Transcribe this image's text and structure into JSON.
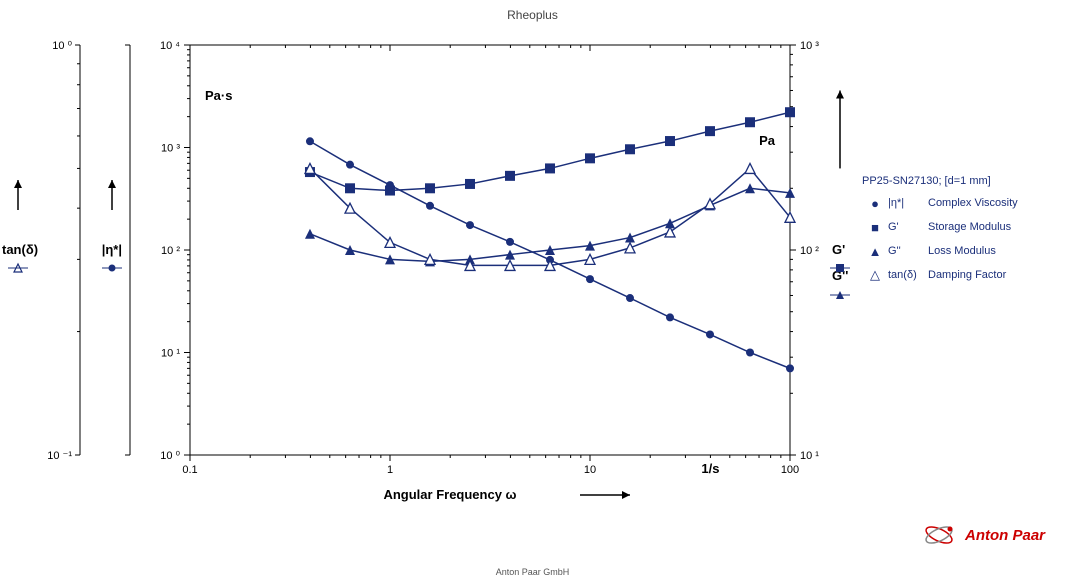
{
  "meta": {
    "title": "Rheoplus",
    "footer": "Anton Paar GmbH",
    "brand": "Anton Paar"
  },
  "plot": {
    "x": {
      "label": "Angular Frequency ω",
      "unit": "1/s",
      "scale": "log",
      "lim": [
        0.1,
        100
      ],
      "ticks": [
        0.1,
        1,
        10,
        100
      ]
    },
    "y_left": {
      "label": "|η*|",
      "unit": "Pa·s",
      "scale": "log",
      "lim": [
        1,
        10000
      ],
      "ticks": [
        1,
        10,
        100,
        1000,
        10000
      ],
      "tick_labels": [
        "10 ⁰",
        "10 ¹",
        "10 ²",
        "10 ³",
        "10 ⁴"
      ]
    },
    "y_right": {
      "labels": [
        "G'",
        "G''"
      ],
      "unit": "Pa",
      "scale": "log",
      "lim": [
        10,
        1000
      ],
      "ticks": [
        10,
        100,
        1000
      ],
      "tick_labels": [
        "10 ¹",
        "10 ²",
        "10 ³"
      ]
    },
    "y_far_left": {
      "label": "tan(δ)",
      "scale": "log",
      "lim": [
        0.1,
        1
      ],
      "ticks": [
        0.1,
        1
      ],
      "tick_labels": [
        "10 ⁻¹",
        "10 ⁰"
      ]
    },
    "colors": {
      "series": "#1b2f7a",
      "frame": "#000000",
      "bg": "#ffffff"
    },
    "line_width": 1.5,
    "marker_size": 5
  },
  "series_x": [
    0.398,
    0.631,
    1.0,
    1.585,
    2.512,
    3.981,
    6.31,
    10.0,
    15.85,
    25.12,
    39.81,
    63.1,
    100.0
  ],
  "series": {
    "eta_star": {
      "label": "|η*|",
      "desc": "Complex Viscosity",
      "marker": "circle-filled",
      "axis": "y_left",
      "y": [
        1150,
        680,
        430,
        270,
        175,
        120,
        80,
        52,
        34,
        22,
        15,
        10,
        7
      ]
    },
    "g_prime": {
      "label": "G'",
      "desc": "Storage Modulus",
      "marker": "square-filled",
      "axis": "y_right",
      "y": [
        240,
        200,
        195,
        200,
        210,
        230,
        250,
        280,
        310,
        340,
        380,
        420,
        470
      ]
    },
    "g_double_prime": {
      "label": "G''",
      "desc": "Loss Modulus",
      "marker": "triangle-filled",
      "axis": "y_right",
      "y": [
        120,
        100,
        90,
        88,
        90,
        95,
        100,
        105,
        115,
        135,
        165,
        200,
        190
      ]
    },
    "tan_delta": {
      "label": "tan(δ)",
      "desc": "Damping Factor",
      "marker": "triangle-open",
      "axis": "y_far_left",
      "y": [
        0.5,
        0.4,
        0.33,
        0.3,
        0.29,
        0.29,
        0.29,
        0.3,
        0.32,
        0.35,
        0.41,
        0.5,
        0.38
      ]
    }
  },
  "legend": {
    "header": "PP25-SN27130; [d=1 mm]"
  }
}
